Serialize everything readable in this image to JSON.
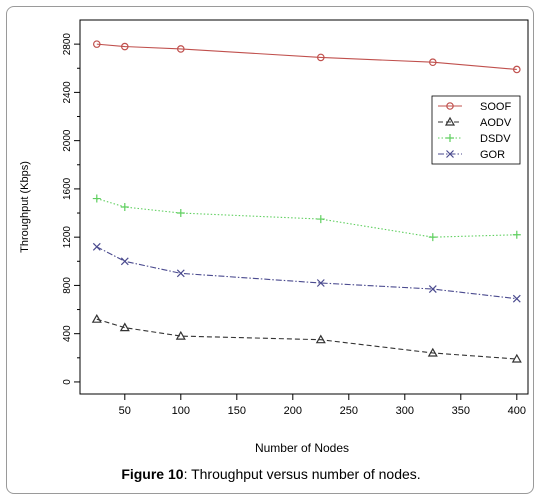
{
  "chart_data": {
    "type": "line",
    "xlabel": "Number of Nodes",
    "ylabel": "Throughput (Kbps)",
    "x": [
      25,
      50,
      100,
      225,
      325,
      400
    ],
    "xticks": [
      "50",
      "100",
      "150",
      "200",
      "250",
      "300",
      "350",
      "400"
    ],
    "yticks": [
      "0",
      "400",
      "800",
      "1200",
      "1600",
      "2000",
      "2400",
      "2800"
    ],
    "xlim": [
      10,
      410
    ],
    "ylim": [
      -100,
      3000
    ],
    "legend_position": "top-right",
    "grid": false,
    "series": [
      {
        "name": "SOOF",
        "values": [
          2800,
          2780,
          2760,
          2690,
          2650,
          2590
        ],
        "color": "#c0504d",
        "marker": "circle",
        "dash": "solid"
      },
      {
        "name": "AODV",
        "values": [
          520,
          450,
          380,
          350,
          240,
          190
        ],
        "color": "#333333",
        "marker": "triangle",
        "dash": "dashed"
      },
      {
        "name": "DSDV",
        "values": [
          1520,
          1450,
          1400,
          1350,
          1200,
          1220
        ],
        "color": "#5fcf5f",
        "marker": "plus",
        "dash": "dotted"
      },
      {
        "name": "GOR",
        "values": [
          1120,
          1000,
          900,
          820,
          770,
          690
        ],
        "color": "#4b4b8f",
        "marker": "x",
        "dash": "dashdot"
      }
    ]
  },
  "caption": {
    "label": "Figure 10",
    "text": ": Throughput versus number of nodes."
  }
}
